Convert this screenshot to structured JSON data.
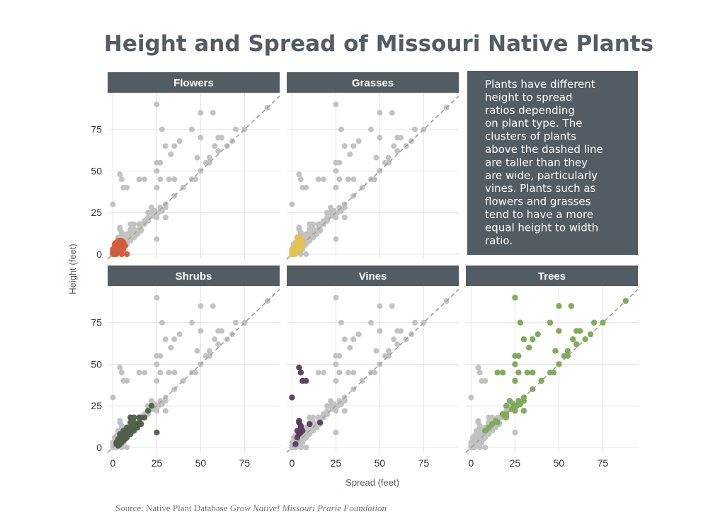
{
  "chart_data": {
    "type": "scatter",
    "title": "Height and Spread of Missouri Native Plants",
    "xlabel": "Spread (feet)",
    "ylabel": "Height (feet)",
    "xlim": [
      -3,
      95
    ],
    "ylim": [
      -3,
      97
    ],
    "xticks": [
      0,
      25,
      50,
      75
    ],
    "yticks": [
      0,
      25,
      50,
      75
    ],
    "background_color": "#c2c2c2",
    "diagonal_line": "y = x",
    "series": [
      {
        "name": "Flowers",
        "color": "#d05e3c",
        "points": [
          [
            0,
            0
          ],
          [
            0,
            1
          ],
          [
            1,
            0
          ],
          [
            1,
            1
          ],
          [
            1,
            2
          ],
          [
            2,
            0
          ],
          [
            2,
            1
          ],
          [
            2,
            2
          ],
          [
            2,
            3
          ],
          [
            0,
            2
          ],
          [
            1,
            3
          ],
          [
            3,
            1
          ],
          [
            3,
            2
          ],
          [
            3,
            3
          ],
          [
            3,
            4
          ],
          [
            4,
            2
          ],
          [
            4,
            3
          ],
          [
            4,
            4
          ],
          [
            4,
            5
          ],
          [
            5,
            3
          ],
          [
            5,
            4
          ],
          [
            5,
            5
          ],
          [
            5,
            6
          ],
          [
            6,
            4
          ],
          [
            6,
            5
          ],
          [
            6,
            6
          ],
          [
            4,
            6
          ],
          [
            3,
            5
          ],
          [
            2,
            4
          ],
          [
            1,
            4
          ],
          [
            0.5,
            0.5
          ],
          [
            1.5,
            1.5
          ],
          [
            2.5,
            2.5
          ],
          [
            3.5,
            3.5
          ],
          [
            4,
            7
          ],
          [
            5,
            8
          ],
          [
            4,
            8
          ],
          [
            6,
            7
          ],
          [
            3,
            6
          ],
          [
            2,
            5
          ],
          [
            7,
            5
          ],
          [
            1,
            6
          ],
          [
            0,
            3
          ],
          [
            5,
            2
          ],
          [
            4,
            1
          ],
          [
            6,
            3
          ],
          [
            2,
            7
          ],
          [
            3,
            8
          ],
          [
            8,
            0
          ],
          [
            5,
            0
          ]
        ]
      },
      {
        "name": "Grasses",
        "color": "#e5c14f",
        "points": [
          [
            0,
            0
          ],
          [
            1,
            1
          ],
          [
            1,
            2
          ],
          [
            2,
            1
          ],
          [
            2,
            2
          ],
          [
            2,
            3
          ],
          [
            3,
            2
          ],
          [
            3,
            3
          ],
          [
            3,
            4
          ],
          [
            1,
            3
          ],
          [
            0,
            2
          ],
          [
            2,
            4
          ],
          [
            3,
            5
          ],
          [
            4,
            3
          ],
          [
            4,
            4
          ],
          [
            4,
            5
          ],
          [
            5,
            5
          ],
          [
            4,
            6
          ],
          [
            3,
            6
          ],
          [
            2,
            5
          ],
          [
            1,
            4
          ],
          [
            0.5,
            1
          ],
          [
            1.5,
            2.5
          ],
          [
            2.5,
            3.5
          ],
          [
            3,
            7
          ],
          [
            4,
            8
          ],
          [
            5,
            9
          ],
          [
            3,
            10
          ],
          [
            5,
            6
          ],
          [
            6,
            5
          ],
          [
            4,
            2
          ],
          [
            1,
            0
          ],
          [
            6,
            8
          ],
          [
            2,
            6
          ]
        ]
      },
      {
        "name": "Shrubs",
        "color": "#505e4a",
        "points": [
          [
            2,
            3
          ],
          [
            3,
            2
          ],
          [
            3,
            5
          ],
          [
            4,
            4
          ],
          [
            5,
            5
          ],
          [
            5,
            7
          ],
          [
            6,
            6
          ],
          [
            6,
            8
          ],
          [
            7,
            7
          ],
          [
            7,
            5
          ],
          [
            8,
            8
          ],
          [
            8,
            10
          ],
          [
            9,
            9
          ],
          [
            10,
            10
          ],
          [
            10,
            12
          ],
          [
            12,
            12
          ],
          [
            12,
            15
          ],
          [
            14,
            14
          ],
          [
            15,
            15
          ],
          [
            15,
            18
          ],
          [
            10,
            18
          ],
          [
            12,
            18
          ],
          [
            20,
            22
          ],
          [
            22,
            25
          ],
          [
            25,
            9
          ],
          [
            4,
            2
          ],
          [
            3,
            1
          ],
          [
            5,
            3
          ],
          [
            6,
            4
          ],
          [
            8,
            6
          ],
          [
            10,
            8
          ],
          [
            12,
            10
          ],
          [
            14,
            12
          ],
          [
            16,
            14
          ],
          [
            6,
            10
          ],
          [
            4,
            6
          ],
          [
            8,
            12
          ],
          [
            10,
            15
          ],
          [
            2,
            2
          ],
          [
            4,
            8
          ],
          [
            18,
            18
          ],
          [
            16,
            18
          ]
        ]
      },
      {
        "name": "Vines",
        "color": "#5c3d5e",
        "points": [
          [
            4,
            48
          ],
          [
            5,
            45
          ],
          [
            6,
            40
          ],
          [
            8,
            40
          ],
          [
            0,
            30
          ],
          [
            4,
            15
          ],
          [
            5,
            13
          ],
          [
            6,
            10
          ],
          [
            4,
            8
          ],
          [
            5,
            9
          ],
          [
            3,
            6
          ],
          [
            2,
            2
          ],
          [
            4,
            16
          ],
          [
            16,
            15
          ],
          [
            10,
            14
          ],
          [
            5,
            12
          ],
          [
            3,
            10
          ]
        ]
      },
      {
        "name": "Trees",
        "color": "#7daa5a",
        "points": [
          [
            25,
            90
          ],
          [
            50,
            85
          ],
          [
            57,
            85
          ],
          [
            28,
            75
          ],
          [
            45,
            75
          ],
          [
            50,
            70
          ],
          [
            38,
            68
          ],
          [
            35,
            65
          ],
          [
            33,
            60
          ],
          [
            30,
            65
          ],
          [
            48,
            58
          ],
          [
            53,
            55
          ],
          [
            55,
            58
          ],
          [
            60,
            70
          ],
          [
            62,
            70
          ],
          [
            58,
            65
          ],
          [
            60,
            62
          ],
          [
            65,
            65
          ],
          [
            68,
            68
          ],
          [
            70,
            75
          ],
          [
            75,
            75
          ],
          [
            88,
            88
          ],
          [
            25,
            55
          ],
          [
            27,
            55
          ],
          [
            25,
            50
          ],
          [
            27,
            45
          ],
          [
            35,
            45
          ],
          [
            32,
            45
          ],
          [
            25,
            40
          ],
          [
            40,
            40
          ],
          [
            20,
            25
          ],
          [
            22,
            28
          ],
          [
            24,
            26
          ],
          [
            25,
            22
          ],
          [
            26,
            25
          ],
          [
            28,
            26
          ],
          [
            30,
            28
          ],
          [
            30,
            30
          ],
          [
            35,
            35
          ],
          [
            45,
            45
          ],
          [
            47,
            45
          ],
          [
            50,
            50
          ],
          [
            55,
            55
          ],
          [
            15,
            15
          ],
          [
            18,
            20
          ],
          [
            20,
            20
          ],
          [
            15,
            45
          ],
          [
            18,
            45
          ],
          [
            10,
            12
          ],
          [
            12,
            14
          ],
          [
            14,
            16
          ],
          [
            8,
            10
          ],
          [
            20,
            18
          ],
          [
            23,
            23
          ],
          [
            25,
            25
          ],
          [
            27,
            28
          ],
          [
            30,
            22
          ]
        ]
      }
    ],
    "background_points": [
      [
        0,
        0
      ],
      [
        0,
        1
      ],
      [
        1,
        0
      ],
      [
        1,
        1
      ],
      [
        1,
        2
      ],
      [
        2,
        0
      ],
      [
        2,
        1
      ],
      [
        2,
        2
      ],
      [
        2,
        3
      ],
      [
        3,
        1
      ],
      [
        3,
        2
      ],
      [
        3,
        3
      ],
      [
        3,
        4
      ],
      [
        4,
        2
      ],
      [
        4,
        3
      ],
      [
        4,
        4
      ],
      [
        4,
        5
      ],
      [
        5,
        3
      ],
      [
        5,
        4
      ],
      [
        5,
        5
      ],
      [
        5,
        6
      ],
      [
        6,
        4
      ],
      [
        6,
        5
      ],
      [
        6,
        6
      ],
      [
        4,
        6
      ],
      [
        3,
        5
      ],
      [
        2,
        4
      ],
      [
        1,
        4
      ],
      [
        4,
        7
      ],
      [
        5,
        8
      ],
      [
        4,
        8
      ],
      [
        6,
        7
      ],
      [
        3,
        6
      ],
      [
        2,
        5
      ],
      [
        7,
        5
      ],
      [
        1,
        6
      ],
      [
        0,
        3
      ],
      [
        5,
        2
      ],
      [
        4,
        1
      ],
      [
        6,
        3
      ],
      [
        2,
        7
      ],
      [
        3,
        8
      ],
      [
        8,
        0
      ],
      [
        5,
        0
      ],
      [
        3,
        10
      ],
      [
        5,
        9
      ],
      [
        6,
        8
      ],
      [
        7,
        7
      ],
      [
        8,
        8
      ],
      [
        8,
        10
      ],
      [
        9,
        9
      ],
      [
        10,
        10
      ],
      [
        10,
        12
      ],
      [
        12,
        12
      ],
      [
        12,
        15
      ],
      [
        14,
        14
      ],
      [
        15,
        15
      ],
      [
        15,
        18
      ],
      [
        10,
        18
      ],
      [
        12,
        18
      ],
      [
        20,
        22
      ],
      [
        22,
        25
      ],
      [
        25,
        9
      ],
      [
        8,
        6
      ],
      [
        10,
        8
      ],
      [
        12,
        10
      ],
      [
        14,
        12
      ],
      [
        16,
        14
      ],
      [
        6,
        10
      ],
      [
        8,
        12
      ],
      [
        10,
        15
      ],
      [
        18,
        18
      ],
      [
        16,
        18
      ],
      [
        4,
        48
      ],
      [
        5,
        45
      ],
      [
        6,
        40
      ],
      [
        8,
        40
      ],
      [
        0,
        30
      ],
      [
        4,
        15
      ],
      [
        5,
        13
      ],
      [
        6,
        10
      ],
      [
        4,
        16
      ],
      [
        16,
        15
      ],
      [
        10,
        14
      ],
      [
        5,
        12
      ],
      [
        25,
        90
      ],
      [
        50,
        85
      ],
      [
        57,
        85
      ],
      [
        28,
        75
      ],
      [
        45,
        75
      ],
      [
        50,
        70
      ],
      [
        38,
        68
      ],
      [
        35,
        65
      ],
      [
        33,
        60
      ],
      [
        30,
        65
      ],
      [
        48,
        58
      ],
      [
        53,
        55
      ],
      [
        55,
        58
      ],
      [
        60,
        70
      ],
      [
        62,
        70
      ],
      [
        58,
        65
      ],
      [
        60,
        62
      ],
      [
        65,
        65
      ],
      [
        68,
        68
      ],
      [
        70,
        75
      ],
      [
        75,
        75
      ],
      [
        88,
        88
      ],
      [
        25,
        55
      ],
      [
        27,
        55
      ],
      [
        25,
        50
      ],
      [
        27,
        45
      ],
      [
        35,
        45
      ],
      [
        32,
        45
      ],
      [
        25,
        40
      ],
      [
        40,
        40
      ],
      [
        20,
        25
      ],
      [
        22,
        28
      ],
      [
        24,
        26
      ],
      [
        25,
        22
      ],
      [
        26,
        25
      ],
      [
        28,
        26
      ],
      [
        30,
        28
      ],
      [
        30,
        30
      ],
      [
        35,
        35
      ],
      [
        45,
        45
      ],
      [
        47,
        45
      ],
      [
        50,
        50
      ],
      [
        55,
        55
      ],
      [
        15,
        45
      ],
      [
        18,
        45
      ],
      [
        18,
        20
      ],
      [
        20,
        20
      ],
      [
        23,
        23
      ],
      [
        25,
        25
      ],
      [
        27,
        28
      ],
      [
        30,
        22
      ]
    ]
  },
  "note": {
    "lines": [
      "Plants have different",
      "height to spread",
      "ratios depending",
      "on plant type. The",
      "clusters of plants",
      "above the dashed line",
      "are taller than they",
      "are wide, particularly",
      "vines. Plants such as",
      "flowers and grasses",
      "tend to have a more",
      "equal height to width",
      "ratio."
    ]
  },
  "source": {
    "prefix": "Source: Native Plant Database ",
    "italic": "Grow Native! Missouri Prarie Foundation"
  }
}
